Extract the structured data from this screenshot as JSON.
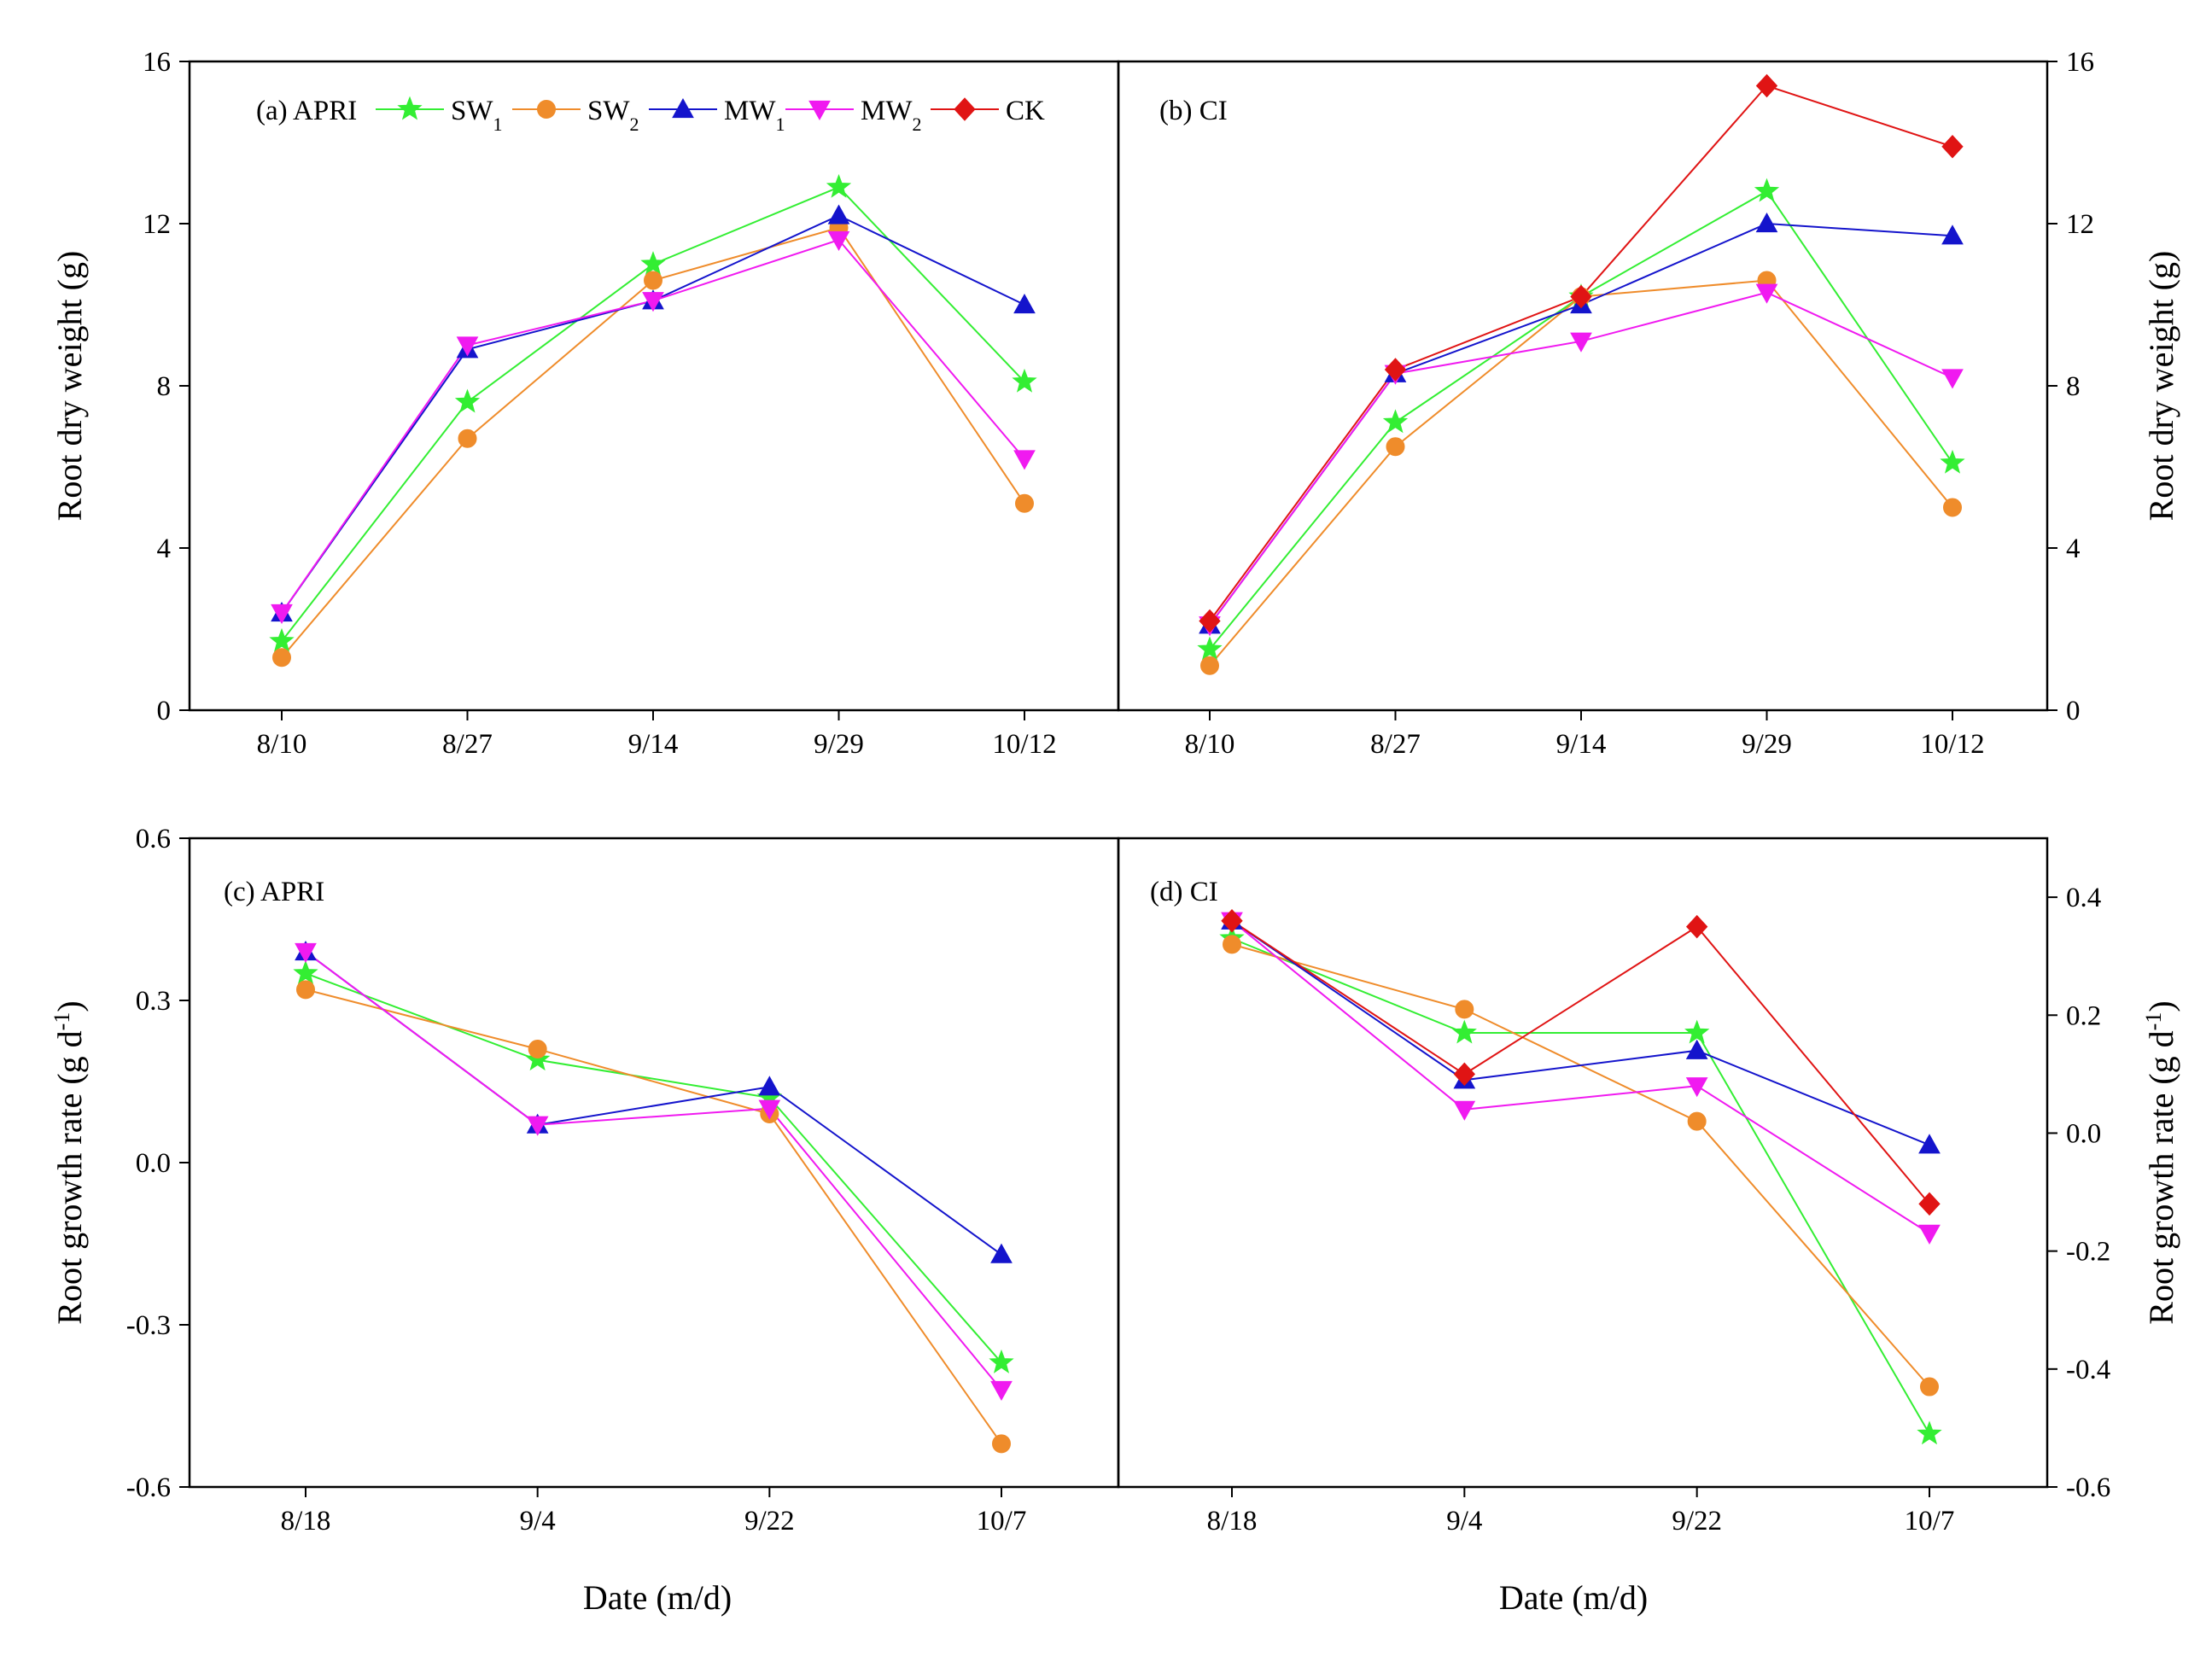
{
  "figure": {
    "x_title": "Date (m/d)"
  },
  "legend": [
    {
      "key": "SW1",
      "base": "SW",
      "sub": "1",
      "color": "#33ee33",
      "marker": "star"
    },
    {
      "key": "SW2",
      "base": "SW",
      "sub": "2",
      "color": "#ef8c2b",
      "marker": "circle"
    },
    {
      "key": "MW1",
      "base": "MW",
      "sub": "1",
      "color": "#1414cc",
      "marker": "triangle-up"
    },
    {
      "key": "MW2",
      "base": "MW",
      "sub": "2",
      "color": "#f01af0",
      "marker": "triangle-down"
    },
    {
      "key": "CK",
      "base": "CK",
      "sub": "",
      "color": "#e01414",
      "marker": "diamond"
    }
  ],
  "chart_data": [
    {
      "id": "a",
      "type": "line",
      "label": "(a) APRI",
      "ylabel": "Root dry weight (g)",
      "yaxis_side": "left",
      "categories": [
        "8/10",
        "8/27",
        "9/14",
        "9/29",
        "10/12"
      ],
      "ylim": [
        0,
        16
      ],
      "yticks": [
        0,
        4,
        8,
        12,
        16
      ],
      "ytick_labels": [
        "0",
        "4",
        "8",
        "12",
        "16"
      ],
      "series": [
        {
          "name": "SW1",
          "values": [
            1.7,
            7.6,
            11.0,
            12.9,
            8.1
          ]
        },
        {
          "name": "SW2",
          "values": [
            1.3,
            6.7,
            10.6,
            11.9,
            5.1
          ]
        },
        {
          "name": "MW1",
          "values": [
            2.4,
            8.9,
            10.1,
            12.2,
            10.0
          ]
        },
        {
          "name": "MW2",
          "values": [
            2.4,
            9.0,
            10.1,
            11.6,
            6.2
          ]
        }
      ]
    },
    {
      "id": "b",
      "type": "line",
      "label": "(b) CI",
      "ylabel": "Root dry weight (g)",
      "yaxis_side": "right",
      "categories": [
        "8/10",
        "8/27",
        "9/14",
        "9/29",
        "10/12"
      ],
      "ylim": [
        0,
        16
      ],
      "yticks": [
        0,
        4,
        8,
        12,
        16
      ],
      "ytick_labels": [
        "0",
        "4",
        "8",
        "12",
        "16"
      ],
      "series": [
        {
          "name": "SW1",
          "values": [
            1.5,
            7.1,
            10.2,
            12.8,
            6.1
          ]
        },
        {
          "name": "SW2",
          "values": [
            1.1,
            6.5,
            10.2,
            10.6,
            5.0
          ]
        },
        {
          "name": "MW1",
          "values": [
            2.1,
            8.3,
            10.0,
            12.0,
            11.7
          ]
        },
        {
          "name": "MW2",
          "values": [
            2.1,
            8.3,
            9.1,
            10.3,
            8.2
          ]
        },
        {
          "name": "CK",
          "values": [
            2.2,
            8.4,
            10.2,
            15.4,
            13.9
          ]
        }
      ]
    },
    {
      "id": "c",
      "type": "line",
      "label": "(c) APRI",
      "ylabel": "Root growth rate (g d⁻¹)",
      "yaxis_side": "left",
      "categories": [
        "8/18",
        "9/4",
        "9/22",
        "10/7"
      ],
      "ylim": [
        -0.6,
        0.6
      ],
      "yticks": [
        -0.6,
        -0.3,
        0.0,
        0.3,
        0.6
      ],
      "ytick_labels": [
        "-0.6",
        "-0.3",
        "0.0",
        "0.3",
        "0.6"
      ],
      "series": [
        {
          "name": "SW1",
          "values": [
            0.35,
            0.19,
            0.12,
            -0.37
          ]
        },
        {
          "name": "SW2",
          "values": [
            0.32,
            0.21,
            0.09,
            -0.52
          ]
        },
        {
          "name": "MW1",
          "values": [
            0.39,
            0.07,
            0.14,
            -0.17
          ]
        },
        {
          "name": "MW2",
          "values": [
            0.39,
            0.07,
            0.1,
            -0.42
          ]
        }
      ]
    },
    {
      "id": "d",
      "type": "line",
      "label": "(d) CI",
      "ylabel": "Root growth rate (g d⁻¹)",
      "yaxis_side": "right",
      "categories": [
        "8/18",
        "9/4",
        "9/22",
        "10/7"
      ],
      "ylim": [
        -0.6,
        0.5
      ],
      "yticks": [
        -0.6,
        -0.4,
        -0.2,
        0.0,
        0.2,
        0.4
      ],
      "ytick_labels": [
        "-0.6",
        "-0.4",
        "-0.2",
        "0.0",
        "0.2",
        "0.4"
      ],
      "series": [
        {
          "name": "SW1",
          "values": [
            0.33,
            0.17,
            0.17,
            -0.51
          ]
        },
        {
          "name": "SW2",
          "values": [
            0.32,
            0.21,
            0.02,
            -0.43
          ]
        },
        {
          "name": "MW1",
          "values": [
            0.36,
            0.09,
            0.14,
            -0.02
          ]
        },
        {
          "name": "MW2",
          "values": [
            0.36,
            0.04,
            0.08,
            -0.17
          ]
        },
        {
          "name": "CK",
          "values": [
            0.36,
            0.1,
            0.35,
            -0.12
          ]
        }
      ]
    }
  ]
}
